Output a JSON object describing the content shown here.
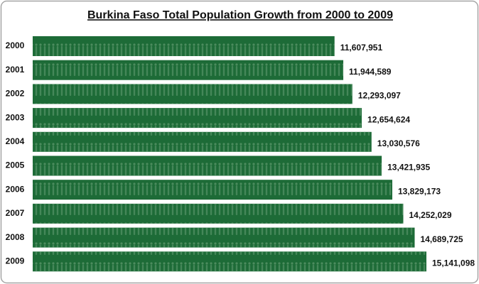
{
  "chart_data": {
    "type": "bar",
    "orientation": "horizontal",
    "title": "Burkina Faso Total Population Growth from 2000 to 2009",
    "categories": [
      "2000",
      "2001",
      "2002",
      "2003",
      "2004",
      "2005",
      "2006",
      "2007",
      "2008",
      "2009"
    ],
    "values": [
      11607951,
      11944589,
      12293097,
      12654624,
      13030576,
      13421935,
      13829173,
      14252029,
      14689725,
      15141098
    ],
    "value_labels": [
      "11,607,951",
      "11,944,589",
      "12,293,097",
      "12,654,624",
      "13,030,576",
      "13,421,935",
      "13,829,173",
      "14,252,029",
      "14,689,725",
      "15,141,098"
    ],
    "color": "#1d6b37"
  }
}
